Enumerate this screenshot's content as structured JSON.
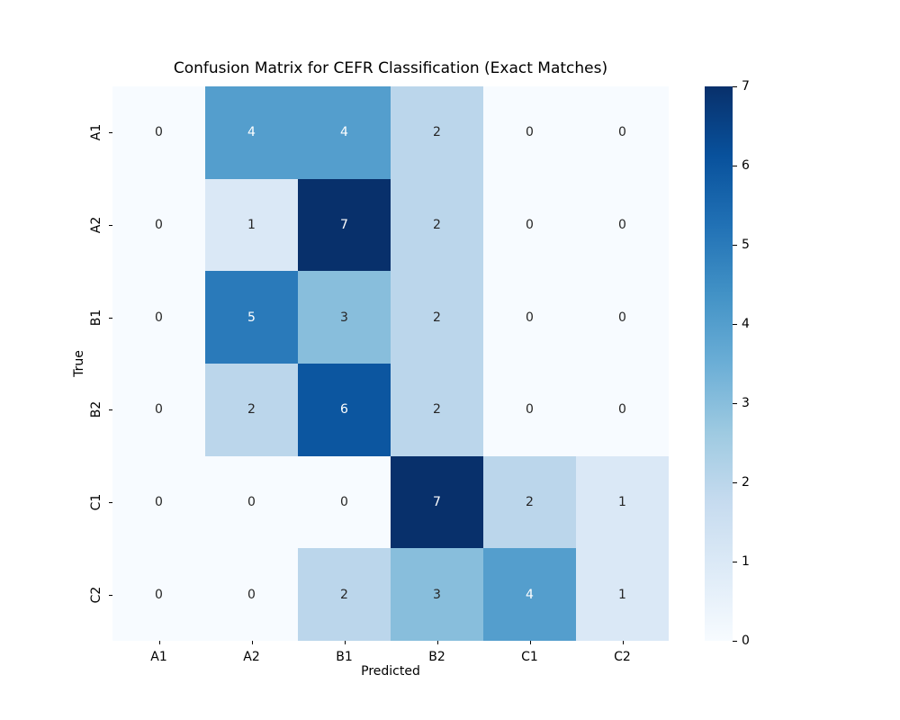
{
  "chart_data": {
    "type": "heatmap",
    "title": "Confusion Matrix for CEFR Classification (Exact Matches)",
    "xlabel": "Predicted",
    "ylabel": "True",
    "x_categories": [
      "A1",
      "A2",
      "B1",
      "B2",
      "C1",
      "C2"
    ],
    "y_categories": [
      "A1",
      "A2",
      "B1",
      "B2",
      "C1",
      "C2"
    ],
    "matrix": [
      [
        0,
        4,
        4,
        2,
        0,
        0
      ],
      [
        0,
        1,
        7,
        2,
        0,
        0
      ],
      [
        0,
        5,
        3,
        2,
        0,
        0
      ],
      [
        0,
        2,
        6,
        2,
        0,
        0
      ],
      [
        0,
        0,
        0,
        7,
        2,
        1
      ],
      [
        0,
        0,
        2,
        3,
        4,
        1
      ]
    ],
    "vmin": 0,
    "vmax": 7,
    "colormap": "Blues",
    "colorbar_ticks": [
      0,
      1,
      2,
      3,
      4,
      5,
      6,
      7
    ],
    "legend_position": "right-colorbar",
    "grid": false,
    "value_colors": {
      "0": "#f7fbff",
      "1": "#dae8f6",
      "2": "#bbd6eb",
      "3": "#88bedc",
      "4": "#549ecd",
      "5": "#2a7aba",
      "6": "#0c56a0",
      "7": "#08306b"
    },
    "colormap_stops": [
      {
        "pos": "0%",
        "color": "#f7fbff"
      },
      {
        "pos": "12.5%",
        "color": "#deebf7"
      },
      {
        "pos": "25%",
        "color": "#c6dbef"
      },
      {
        "pos": "37.5%",
        "color": "#9ecae1"
      },
      {
        "pos": "50%",
        "color": "#6baed6"
      },
      {
        "pos": "62.5%",
        "color": "#4292c6"
      },
      {
        "pos": "75%",
        "color": "#2171b5"
      },
      {
        "pos": "87.5%",
        "color": "#08519c"
      },
      {
        "pos": "100%",
        "color": "#08306b"
      }
    ],
    "annotation_dark_color": "#262626",
    "annotation_light_color": "#ffffff",
    "white_text_min_value": 4
  }
}
